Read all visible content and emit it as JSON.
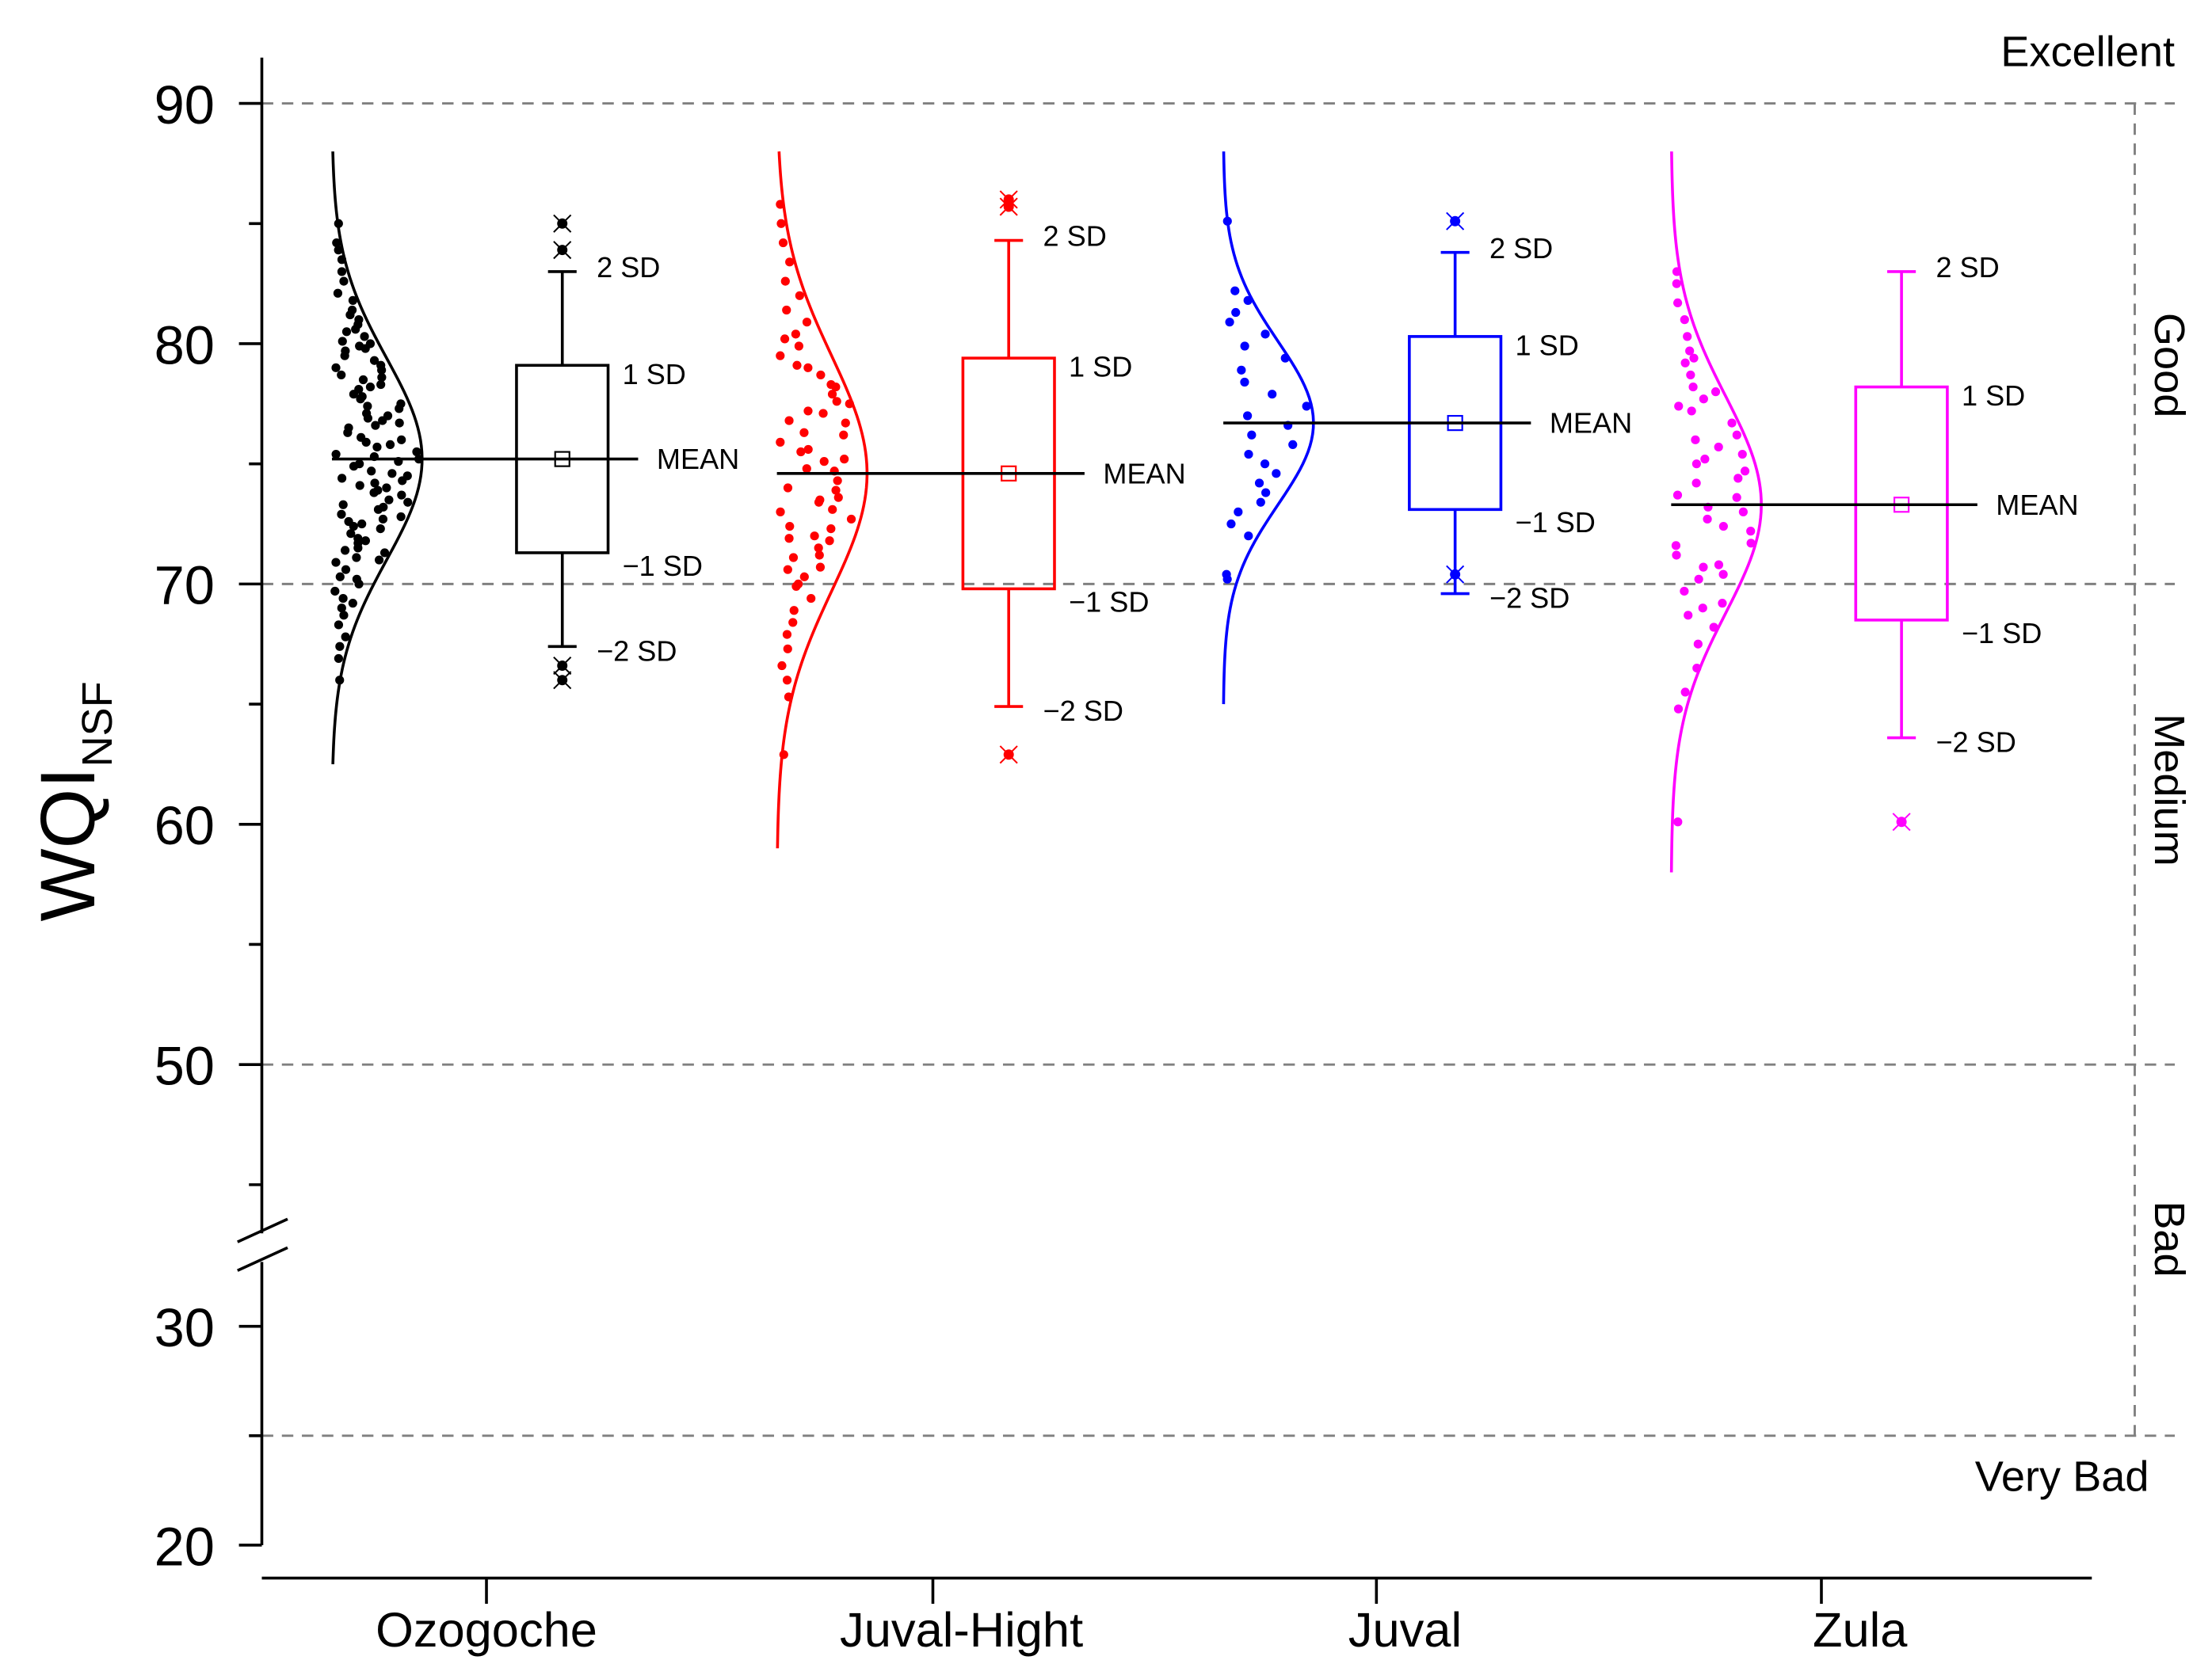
{
  "chart_data": {
    "type": "box",
    "title": "",
    "ylabel_main": "WQI",
    "ylabel_sub": "NSF",
    "xlabel": "",
    "y_ticks_upper": [
      "50",
      "60",
      "70",
      "80",
      "90"
    ],
    "y_ticks_lower": [
      "20",
      "30"
    ],
    "axis_break": {
      "from": 28,
      "to": 42
    },
    "ylim": [
      20,
      92
    ],
    "threshold_lines": [
      25,
      50,
      70,
      90
    ],
    "categories": [
      "Excellent",
      "Good",
      "Medium",
      "Bad",
      "Very Bad"
    ],
    "groups": [
      {
        "name": "Ozogoche",
        "color": "#000000",
        "mean": 75.2,
        "q1": 71.3,
        "q3": 79.1,
        "whisker_low": 67.4,
        "whisker_high": 83.0,
        "curve_mean": 75.2,
        "curve_sd": 4.2,
        "curve_min": 62.5,
        "curve_max": 88,
        "outliers": [
          85.0,
          83.9,
          66.6,
          66.0
        ],
        "points": [
          85.0,
          84.2,
          83.9,
          83.5,
          83.0,
          82.6,
          82.1,
          81.8,
          81.4,
          81.0,
          80.8,
          80.5,
          80.3,
          80.1,
          79.9,
          79.7,
          79.5,
          79.3,
          79.1,
          78.9,
          78.7,
          78.5,
          78.3,
          78.1,
          77.9,
          77.7,
          77.5,
          77.3,
          77.1,
          76.9,
          76.7,
          76.5,
          76.3,
          76.1,
          75.9,
          75.7,
          75.5,
          75.3,
          75.1,
          74.9,
          74.7,
          74.5,
          74.3,
          74.1,
          73.9,
          73.7,
          73.5,
          73.3,
          73.1,
          72.9,
          72.7,
          72.5,
          72.3,
          72.1,
          71.9,
          71.7,
          71.5,
          71.3,
          71.1,
          70.9,
          70.6,
          70.3,
          70.0,
          69.7,
          69.4,
          69.0,
          68.7,
          68.3,
          67.8,
          67.4,
          66.9,
          66.0,
          80.6,
          79.8,
          79.0,
          78.2,
          77.4,
          76.6,
          75.8,
          75.0,
          74.2,
          73.4,
          72.6,
          71.8,
          71.0,
          76.8,
          75.4,
          74.0,
          73.2,
          77.8,
          76.0,
          74.6,
          72.4,
          78.6,
          75.2,
          73.8,
          71.4,
          70.2,
          69.2,
          80.0,
          81.2,
          77.0,
          74.4,
          72.8
        ]
      },
      {
        "name": "Juval-Hight",
        "color": "#ff0000",
        "mean": 74.6,
        "q1": 69.8,
        "q3": 79.4,
        "whisker_low": 64.9,
        "whisker_high": 84.3,
        "curve_mean": 74.6,
        "curve_sd": 4.9,
        "curve_min": 59,
        "curve_max": 88,
        "outliers": [
          86.0,
          85.7,
          62.9
        ],
        "points": [
          85.8,
          85.0,
          84.2,
          83.4,
          82.6,
          82.0,
          81.4,
          80.9,
          80.4,
          79.9,
          79.5,
          79.1,
          78.7,
          78.3,
          77.9,
          77.5,
          77.1,
          76.7,
          76.3,
          75.9,
          75.5,
          75.1,
          74.7,
          74.3,
          73.9,
          73.5,
          73.1,
          72.7,
          72.3,
          71.9,
          71.5,
          71.1,
          70.7,
          70.3,
          69.9,
          69.4,
          68.9,
          68.4,
          67.9,
          67.3,
          66.6,
          66.0,
          65.3,
          62.9,
          79.0,
          77.6,
          76.2,
          74.8,
          73.4,
          72.0,
          70.6,
          78.2,
          75.6,
          73.0,
          71.2,
          77.2,
          74.0,
          72.4,
          80.2,
          76.8,
          75.2,
          73.6,
          71.8,
          70.0
        ]
      },
      {
        "name": "Juval",
        "color": "#0000ff",
        "mean": 76.7,
        "q1": 73.1,
        "q3": 80.3,
        "whisker_low": 69.6,
        "whisker_high": 83.8,
        "curve_mean": 76.7,
        "curve_sd": 3.4,
        "curve_min": 65,
        "curve_max": 88,
        "outliers": [
          85.1,
          70.4
        ],
        "points": [
          85.1,
          82.2,
          81.8,
          81.3,
          80.9,
          80.4,
          79.9,
          79.4,
          78.9,
          78.4,
          77.9,
          77.4,
          77.0,
          76.6,
          76.2,
          75.8,
          75.4,
          75.0,
          74.6,
          74.2,
          73.8,
          73.4,
          73.0,
          72.5,
          72.0,
          70.4,
          70.2
        ]
      },
      {
        "name": "Zula",
        "color": "#ff00ff",
        "mean": 73.3,
        "q1": 68.5,
        "q3": 78.2,
        "whisker_low": 63.6,
        "whisker_high": 83.0,
        "curve_mean": 73.3,
        "curve_sd": 4.5,
        "curve_min": 58,
        "curve_max": 88,
        "outliers": [
          60.1
        ],
        "points": [
          83.0,
          82.5,
          81.7,
          81.0,
          80.3,
          79.7,
          79.2,
          78.7,
          78.2,
          77.7,
          77.2,
          76.7,
          76.2,
          75.7,
          75.2,
          74.7,
          74.2,
          73.7,
          73.2,
          72.7,
          72.2,
          71.7,
          71.2,
          70.7,
          70.2,
          69.7,
          69.2,
          68.7,
          68.2,
          67.5,
          66.5,
          65.5,
          64.8,
          60.1,
          78.0,
          76.0,
          74.4,
          72.4,
          70.8,
          69.0,
          77.4,
          75.4,
          73.6,
          71.6,
          79.4,
          75.0,
          73.0,
          70.4
        ]
      }
    ],
    "annotations": {
      "sd2_high": "2 SD",
      "sd1_high": "1 SD",
      "mean": "MEAN",
      "sd1_low": "−1 SD",
      "sd2_low": "−2 SD"
    }
  }
}
